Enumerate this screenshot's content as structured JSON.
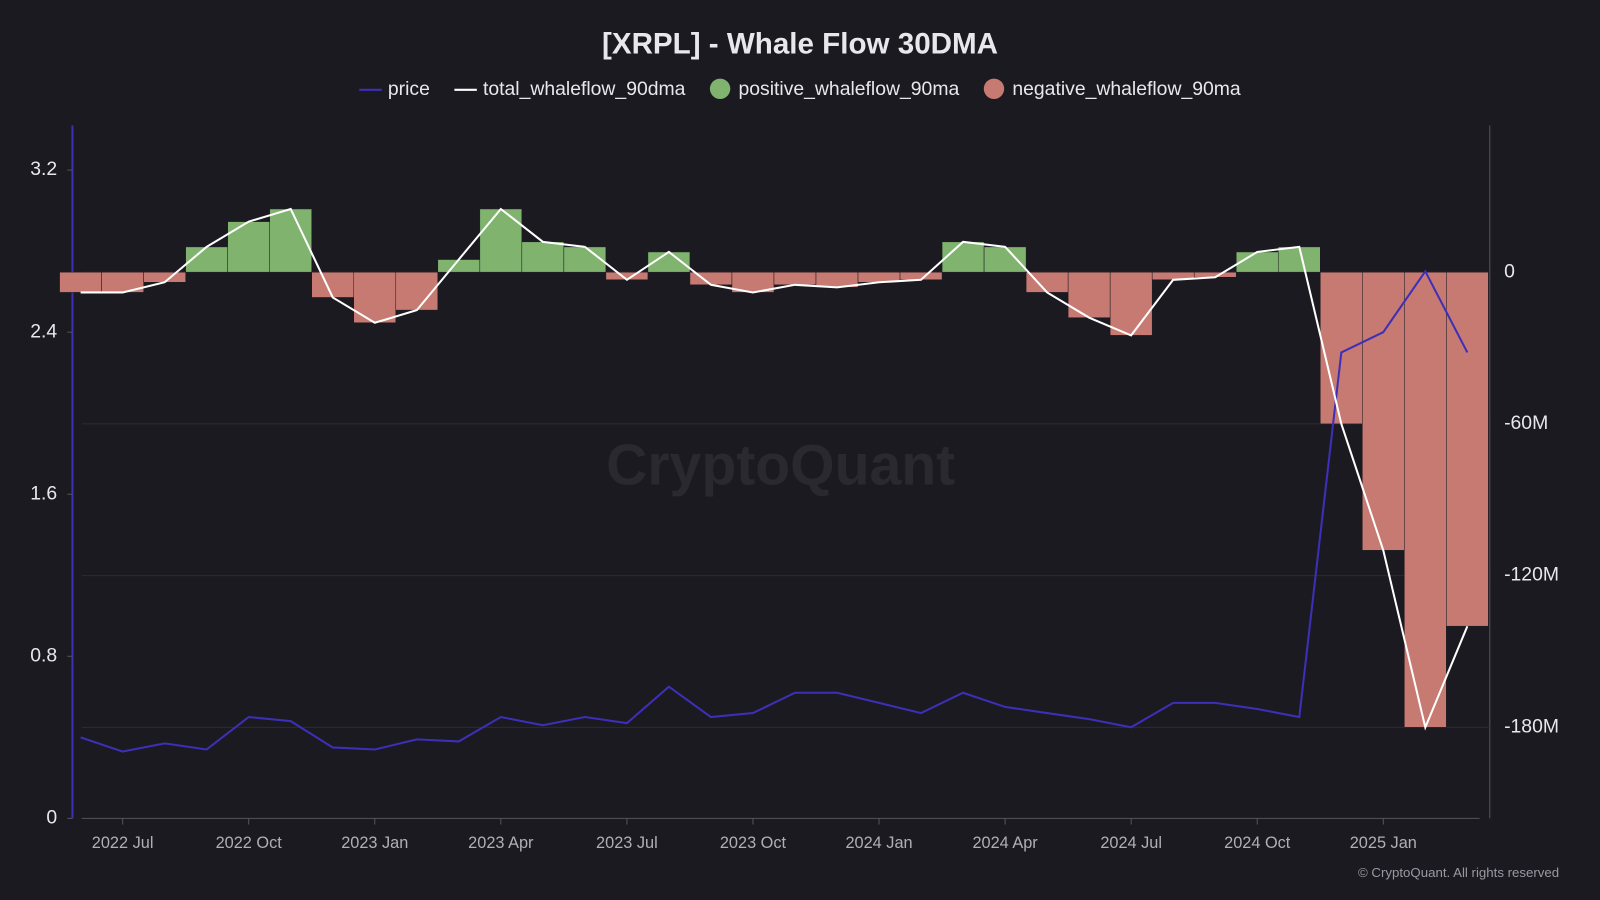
{
  "chart_data": {
    "type": "bar",
    "title": "[XRPL] - Whale Flow 30DMA",
    "watermark": "CryptoQuant",
    "copyright": "© CryptoQuant. All rights reserved",
    "x": [
      "2022-06",
      "2022-07",
      "2022-08",
      "2022-09",
      "2022-10",
      "2022-11",
      "2022-12",
      "2023-01",
      "2023-02",
      "2023-03",
      "2023-04",
      "2023-05",
      "2023-06",
      "2023-07",
      "2023-08",
      "2023-09",
      "2023-10",
      "2023-11",
      "2023-12",
      "2024-01",
      "2024-02",
      "2024-03",
      "2024-04",
      "2024-05",
      "2024-06",
      "2024-07",
      "2024-08",
      "2024-09",
      "2024-10",
      "2024-11",
      "2024-12",
      "2025-01",
      "2025-02",
      "2025-03"
    ],
    "xticks": [
      {
        "value": "2022-07",
        "label": "2022 Jul"
      },
      {
        "value": "2022-10",
        "label": "2022 Oct"
      },
      {
        "value": "2023-01",
        "label": "2023 Jan"
      },
      {
        "value": "2023-04",
        "label": "2023 Apr"
      },
      {
        "value": "2023-07",
        "label": "2023 Jul"
      },
      {
        "value": "2023-10",
        "label": "2023 Oct"
      },
      {
        "value": "2024-01",
        "label": "2024 Jan"
      },
      {
        "value": "2024-04",
        "label": "2024 Apr"
      },
      {
        "value": "2024-07",
        "label": "2024 Jul"
      },
      {
        "value": "2024-10",
        "label": "2024 Oct"
      },
      {
        "value": "2025-01",
        "label": "2025 Jan"
      }
    ],
    "ylim": [
      0,
      3.42
    ],
    "yticks": [
      0,
      0.8,
      1.6,
      2.4,
      3.2
    ],
    "y2lim": [
      -216,
      58
    ],
    "y2ticks": [
      0,
      {
        "value": -60,
        "label": "-60M"
      },
      {
        "value": -120,
        "label": "-120M"
      },
      {
        "value": -180,
        "label": "-180M"
      }
    ],
    "grid": true,
    "series": [
      {
        "name": "positive_whaleflow_90ma",
        "color": "#7fb36e",
        "style": "bar",
        "axis": "y2",
        "values": [
          0,
          0,
          0,
          10,
          20,
          25,
          0,
          0,
          0,
          5,
          25,
          12,
          10,
          0,
          8,
          0,
          0,
          0,
          0,
          0,
          0,
          12,
          10,
          0,
          0,
          0,
          0,
          0,
          8,
          10,
          0,
          0,
          0,
          0
        ]
      },
      {
        "name": "negative_whaleflow_90ma",
        "color": "#c77a72",
        "style": "bar",
        "axis": "y2",
        "values": [
          -8,
          -8,
          -4,
          0,
          0,
          0,
          -10,
          -20,
          -15,
          0,
          0,
          0,
          0,
          -3,
          0,
          -5,
          -8,
          -5,
          -6,
          -4,
          -3,
          0,
          0,
          -8,
          -18,
          -25,
          -3,
          -2,
          0,
          0,
          -60,
          -110,
          -180,
          -140
        ]
      },
      {
        "name": "price",
        "color": "#3d2fb8",
        "style": "line",
        "values": [
          0.4,
          0.33,
          0.37,
          0.34,
          0.5,
          0.48,
          0.35,
          0.34,
          0.39,
          0.38,
          0.5,
          0.46,
          0.5,
          0.47,
          0.65,
          0.5,
          0.52,
          0.62,
          0.62,
          0.57,
          0.52,
          0.62,
          0.55,
          0.52,
          0.49,
          0.45,
          0.57,
          0.57,
          0.54,
          0.5,
          2.3,
          2.4,
          2.7,
          2.3
        ]
      },
      {
        "name": "total_whaleflow_90dma",
        "color": "#ffffff",
        "style": "line",
        "axis": "y2",
        "values": [
          -8,
          -8,
          -4,
          10,
          20,
          25,
          -10,
          -20,
          -15,
          5,
          25,
          12,
          10,
          -3,
          8,
          -5,
          -8,
          -5,
          -6,
          -4,
          -3,
          12,
          10,
          -8,
          -18,
          -25,
          -3,
          -2,
          8,
          10,
          -60,
          -110,
          -180,
          -140
        ]
      }
    ],
    "legend_order": [
      2,
      3,
      0,
      1
    ]
  }
}
